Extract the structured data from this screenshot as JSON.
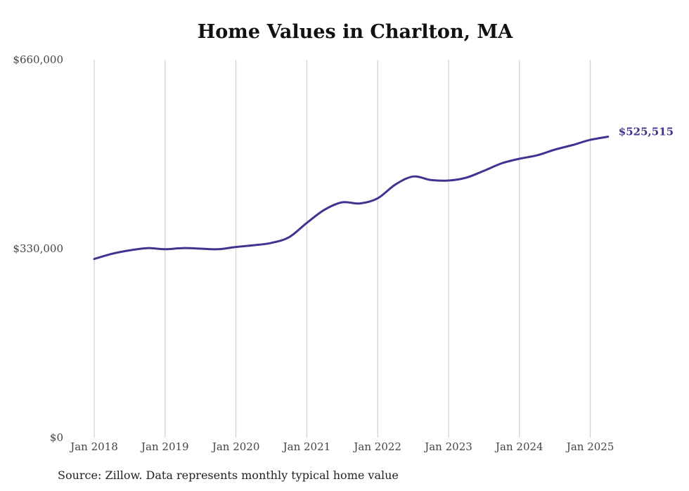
{
  "chart_data": {
    "type": "line",
    "title": "Home Values in Charlton, MA",
    "xlabel": "",
    "ylabel": "",
    "ylim": [
      0,
      660000
    ],
    "y_ticks": [
      "$0",
      "$330,000",
      "$660,000"
    ],
    "x_ticks": [
      "Jan 2018",
      "Jan 2019",
      "Jan 2020",
      "Jan 2021",
      "Jan 2022",
      "Jan 2023",
      "Jan 2024",
      "Jan 2025"
    ],
    "grid": "vertical",
    "legend": "none",
    "line_color": "#3f3590",
    "end_label": "$525,515",
    "series": [
      {
        "values": [
          {
            "x": "2018-01",
            "y": 312000
          },
          {
            "x": "2018-04",
            "y": 321000
          },
          {
            "x": "2018-07",
            "y": 327000
          },
          {
            "x": "2018-10",
            "y": 331000
          },
          {
            "x": "2019-01",
            "y": 329000
          },
          {
            "x": "2019-04",
            "y": 331000
          },
          {
            "x": "2019-07",
            "y": 330000
          },
          {
            "x": "2019-10",
            "y": 329000
          },
          {
            "x": "2020-01",
            "y": 333000
          },
          {
            "x": "2020-04",
            "y": 336000
          },
          {
            "x": "2020-07",
            "y": 340000
          },
          {
            "x": "2020-10",
            "y": 350000
          },
          {
            "x": "2021-01",
            "y": 375000
          },
          {
            "x": "2021-04",
            "y": 398000
          },
          {
            "x": "2021-07",
            "y": 411000
          },
          {
            "x": "2021-10",
            "y": 409000
          },
          {
            "x": "2022-01",
            "y": 418000
          },
          {
            "x": "2022-04",
            "y": 442000
          },
          {
            "x": "2022-07",
            "y": 456000
          },
          {
            "x": "2022-10",
            "y": 450000
          },
          {
            "x": "2023-01",
            "y": 449000
          },
          {
            "x": "2023-04",
            "y": 454000
          },
          {
            "x": "2023-07",
            "y": 466000
          },
          {
            "x": "2023-10",
            "y": 479000
          },
          {
            "x": "2024-01",
            "y": 487000
          },
          {
            "x": "2024-04",
            "y": 493000
          },
          {
            "x": "2024-07",
            "y": 503000
          },
          {
            "x": "2024-10",
            "y": 511000
          },
          {
            "x": "2025-01",
            "y": 520000
          },
          {
            "x": "2025-04",
            "y": 525515
          }
        ]
      }
    ]
  },
  "source_note": "Source: Zillow. Data represents monthly typical home value"
}
